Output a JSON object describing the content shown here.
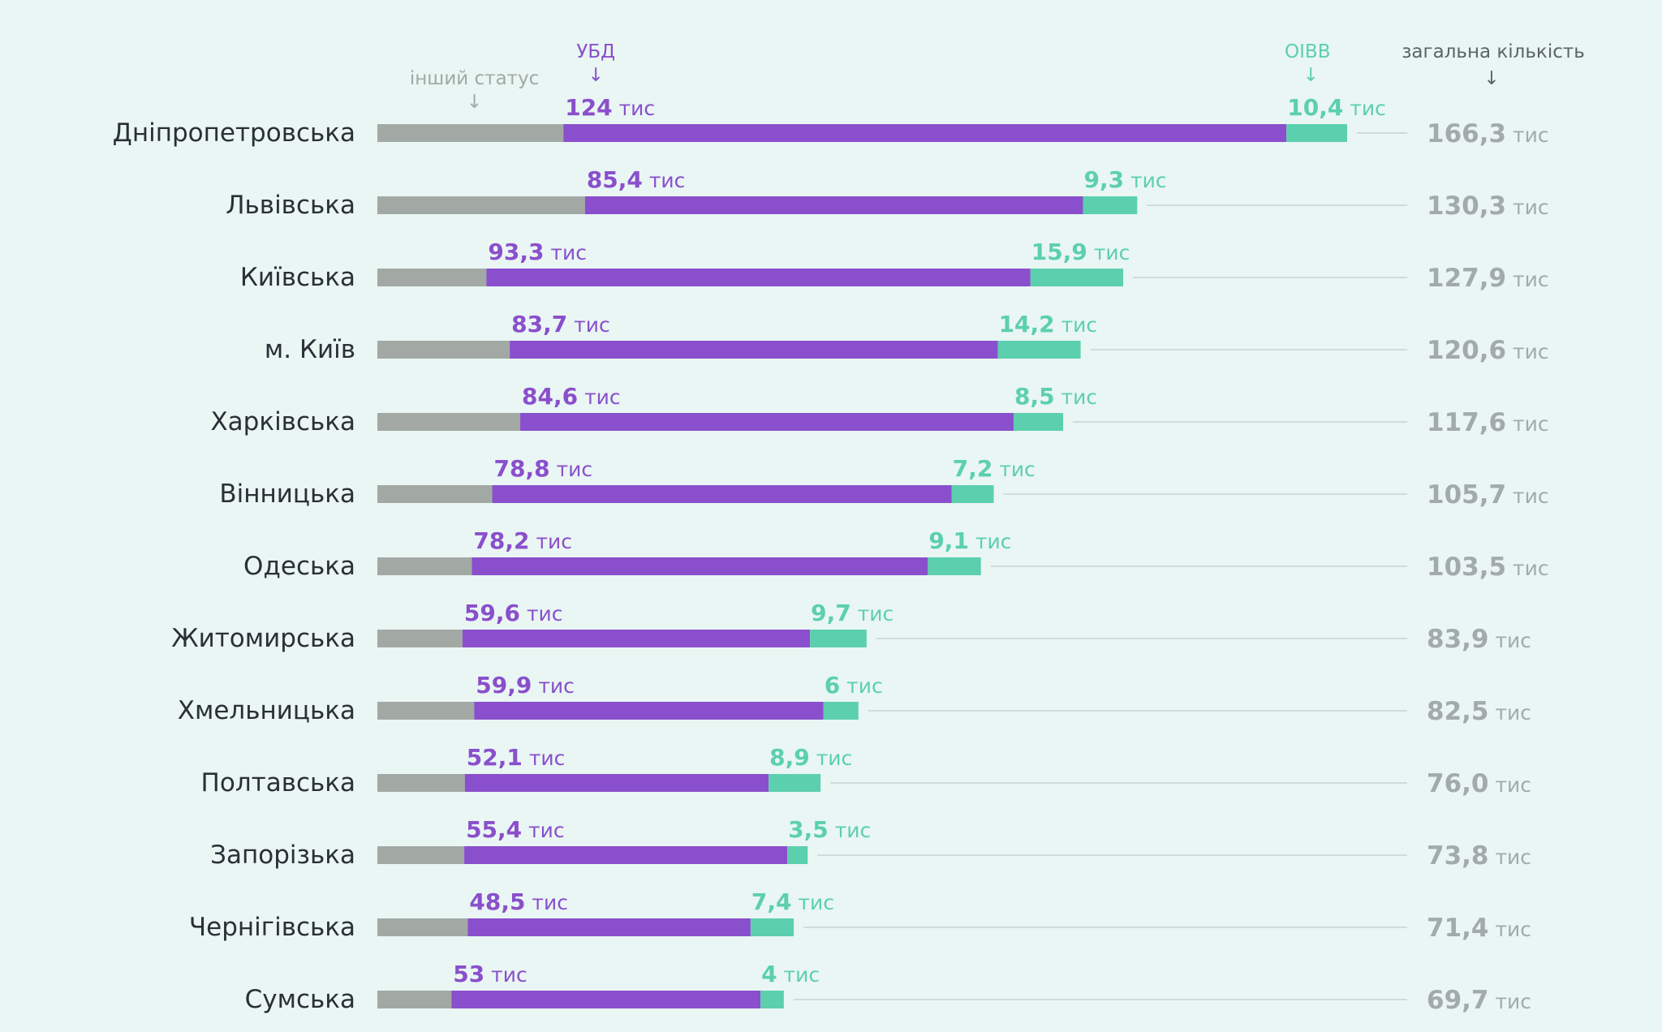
{
  "chart_data": {
    "type": "bar",
    "stacked": true,
    "orientation": "horizontal",
    "unit": "тис",
    "legend": {
      "other": "інший статус",
      "ubd": "УБД",
      "oivv": "ОІВВ",
      "total": "загальна кількість",
      "arrow": "↓"
    },
    "colors": {
      "other": "#a2a9a5",
      "ubd": "#8a4fcc",
      "oivv": "#5ccfaf",
      "total": "#a3aaaa",
      "label": "#2b2f36",
      "connector": "#c5d3d1"
    },
    "categories": [
      "Дніпропетровська",
      "Львівська",
      "Київська",
      "м. Київ",
      "Харківська",
      "Вінницька",
      "Одеська",
      "Житомирська",
      "Хмельницька",
      "Полтавська",
      "Запорізька",
      "Чернігівська",
      "Сумська"
    ],
    "series": [
      {
        "name": "інший статус",
        "values": [
          31.9,
          35.6,
          18.7,
          22.7,
          24.5,
          19.7,
          16.2,
          14.6,
          16.6,
          15.0,
          14.9,
          15.5,
          12.7
        ]
      },
      {
        "name": "УБД",
        "values": [
          124,
          85.4,
          93.3,
          83.7,
          84.6,
          78.8,
          78.2,
          59.6,
          59.9,
          52.1,
          55.4,
          48.5,
          53
        ]
      },
      {
        "name": "ОІВВ",
        "values": [
          10.4,
          9.3,
          15.9,
          14.2,
          8.5,
          7.2,
          9.1,
          9.7,
          6,
          8.9,
          3.5,
          7.4,
          4
        ]
      }
    ],
    "ubd_labels": [
      "124",
      "85,4",
      "93,3",
      "83,7",
      "84,6",
      "78,8",
      "78,2",
      "59,6",
      "59,9",
      "52,1",
      "55,4",
      "48,5",
      "53"
    ],
    "oivv_labels": [
      "10,4",
      "9,3",
      "15,9",
      "14,2",
      "8,5",
      "7,2",
      "9,1",
      "9,7",
      "6",
      "8,9",
      "3,5",
      "7,4",
      "4"
    ],
    "totals": [
      166.3,
      130.3,
      127.9,
      120.6,
      117.6,
      105.7,
      103.5,
      83.9,
      82.5,
      76.0,
      73.8,
      71.4,
      69.7
    ],
    "total_labels": [
      "166,3",
      "130,3",
      "127,9",
      "120,6",
      "117,6",
      "105,7",
      "103,5",
      "83,9",
      "82,5",
      "76,0",
      "73,8",
      "71,4",
      "69,7"
    ],
    "xlim": [
      0,
      166.3
    ]
  }
}
